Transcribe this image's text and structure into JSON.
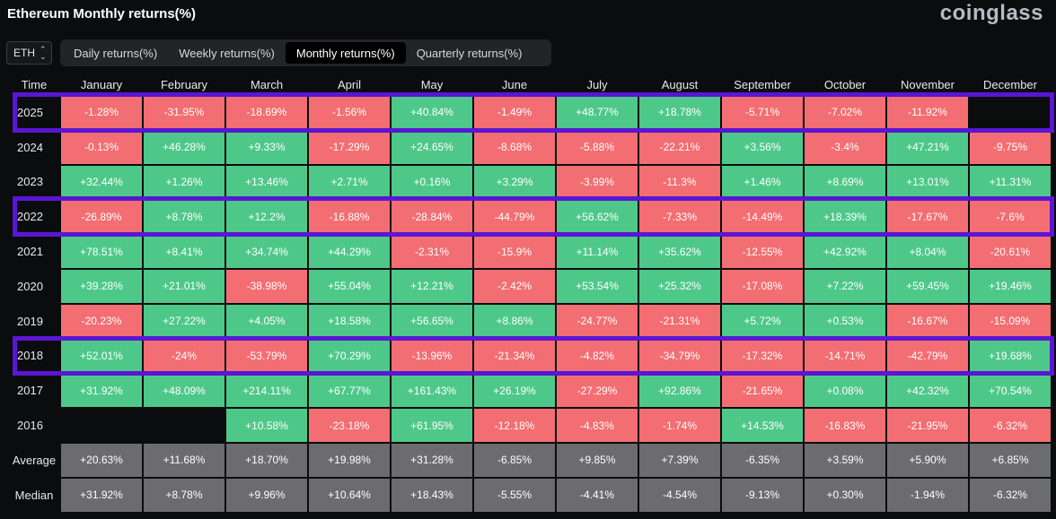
{
  "header": {
    "title": "Ethereum Monthly returns(%)",
    "logo": "coinglass"
  },
  "symbol_select": {
    "value": "ETH"
  },
  "tabs": [
    {
      "label": "Daily returns(%)",
      "active": false
    },
    {
      "label": "Weekly returns(%)",
      "active": false
    },
    {
      "label": "Monthly returns(%)",
      "active": true
    },
    {
      "label": "Quarterly returns(%)",
      "active": false
    }
  ],
  "colors": {
    "positive": "#4ec889",
    "negative": "#f36e72",
    "stat": "#6c6c70",
    "highlight": "#5a16d4"
  },
  "chart_data": {
    "type": "table",
    "title": "Ethereum Monthly returns(%)",
    "columns": [
      "Time",
      "January",
      "February",
      "March",
      "April",
      "May",
      "June",
      "July",
      "August",
      "September",
      "October",
      "November",
      "December"
    ],
    "rows": [
      {
        "label": "2025",
        "highlight": true,
        "values": [
          "-1.28%",
          "-31.95%",
          "-18.69%",
          "-1.56%",
          "+40.84%",
          "-1.49%",
          "+48.77%",
          "+18.78%",
          "-5.71%",
          "-7.02%",
          "-11.92%",
          ""
        ]
      },
      {
        "label": "2024",
        "highlight": false,
        "values": [
          "-0.13%",
          "+46.28%",
          "+9.33%",
          "-17.29%",
          "+24.65%",
          "-8.68%",
          "-5.88%",
          "-22.21%",
          "+3.56%",
          "-3.4%",
          "+47.21%",
          "-9.75%"
        ]
      },
      {
        "label": "2023",
        "highlight": false,
        "values": [
          "+32.44%",
          "+1.26%",
          "+13.46%",
          "+2.71%",
          "+0.16%",
          "+3.29%",
          "-3.99%",
          "-11.3%",
          "+1.46%",
          "+8.69%",
          "+13.01%",
          "+11.31%"
        ]
      },
      {
        "label": "2022",
        "highlight": true,
        "values": [
          "-26.89%",
          "+8.78%",
          "+12.2%",
          "-16.88%",
          "-28.84%",
          "-44.79%",
          "+56.62%",
          "-7.33%",
          "-14.49%",
          "+18.39%",
          "-17.67%",
          "-7.6%"
        ]
      },
      {
        "label": "2021",
        "highlight": false,
        "values": [
          "+78.51%",
          "+8.41%",
          "+34.74%",
          "+44.29%",
          "-2.31%",
          "-15.9%",
          "+11.14%",
          "+35.62%",
          "-12.55%",
          "+42.92%",
          "+8.04%",
          "-20.61%"
        ]
      },
      {
        "label": "2020",
        "highlight": false,
        "values": [
          "+39.28%",
          "+21.01%",
          "-38.98%",
          "+55.04%",
          "+12.21%",
          "-2.42%",
          "+53.54%",
          "+25.32%",
          "-17.08%",
          "+7.22%",
          "+59.45%",
          "+19.46%"
        ]
      },
      {
        "label": "2019",
        "highlight": false,
        "values": [
          "-20.23%",
          "+27.22%",
          "+4.05%",
          "+18.58%",
          "+56.65%",
          "+8.86%",
          "-24.77%",
          "-21.31%",
          "+5.72%",
          "+0.53%",
          "-16.67%",
          "-15.09%"
        ]
      },
      {
        "label": "2018",
        "highlight": true,
        "values": [
          "+52.01%",
          "-24%",
          "-53.79%",
          "+70.29%",
          "-13.96%",
          "-21.34%",
          "-4.82%",
          "-34.79%",
          "-17.32%",
          "-14.71%",
          "-42.79%",
          "+19.68%"
        ]
      },
      {
        "label": "2017",
        "highlight": false,
        "values": [
          "+31.92%",
          "+48.09%",
          "+214.11%",
          "+67.77%",
          "+161.43%",
          "+26.19%",
          "-27.29%",
          "+92.86%",
          "-21.65%",
          "+0.08%",
          "+42.32%",
          "+70.54%"
        ]
      },
      {
        "label": "2016",
        "highlight": false,
        "values": [
          "",
          "",
          "+10.58%",
          "-23.18%",
          "+61.95%",
          "-12.18%",
          "-4.83%",
          "-1.74%",
          "+14.53%",
          "-16.83%",
          "-21.95%",
          "-6.32%"
        ]
      }
    ],
    "stats": [
      {
        "label": "Average",
        "values": [
          "+20.63%",
          "+11.68%",
          "+18.70%",
          "+19.98%",
          "+31.28%",
          "-6.85%",
          "+9.85%",
          "+7.39%",
          "-6.35%",
          "+3.59%",
          "+5.90%",
          "+6.85%"
        ]
      },
      {
        "label": "Median",
        "values": [
          "+31.92%",
          "+8.78%",
          "+9.96%",
          "+10.64%",
          "+18.43%",
          "-5.55%",
          "-4.41%",
          "-4.54%",
          "-9.13%",
          "+0.30%",
          "-1.94%",
          "-6.32%"
        ]
      }
    ]
  }
}
